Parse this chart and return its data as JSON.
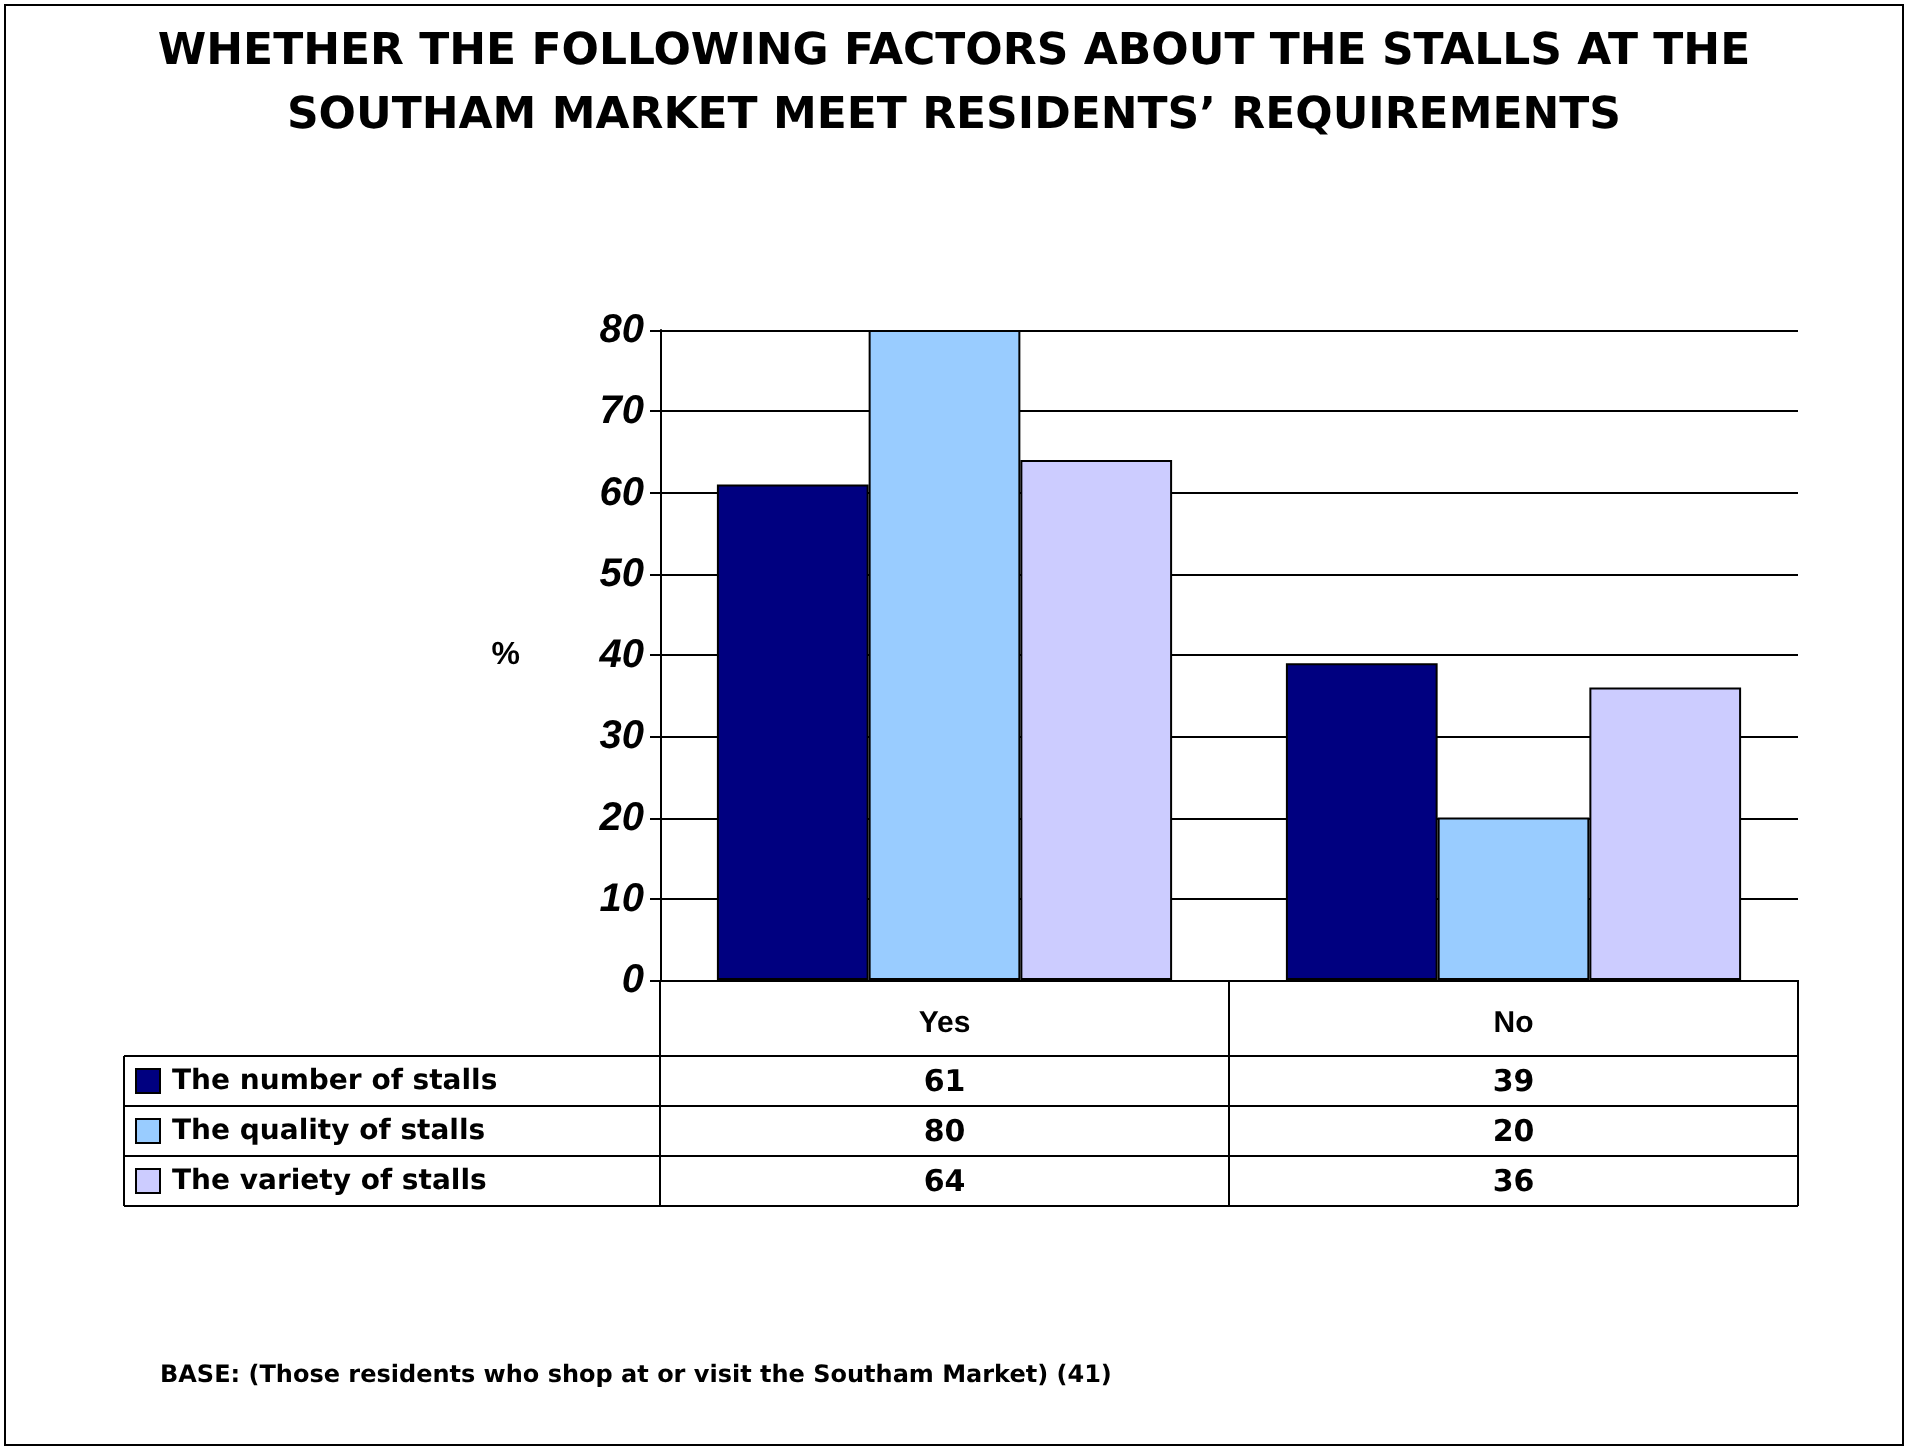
{
  "chart_data": {
    "type": "bar",
    "title": "WHETHER THE FOLLOWING FACTORS ABOUT THE STALLS AT THE SOUTHAM MARKET MEET RESIDENTS’ REQUIREMENTS",
    "ylabel": "%",
    "categories": [
      "Yes",
      "No"
    ],
    "series": [
      {
        "name": "The number of stalls",
        "color": "#000080",
        "values": [
          61,
          39
        ]
      },
      {
        "name": "The quality of stalls",
        "color": "#99ccff",
        "values": [
          80,
          20
        ]
      },
      {
        "name": "The variety of stalls",
        "color": "#ccccff",
        "values": [
          64,
          36
        ]
      }
    ],
    "ylim": [
      0,
      80
    ],
    "yticks": [
      0,
      10,
      20,
      30,
      40,
      50,
      60,
      70,
      80
    ],
    "grid": "y",
    "legend": "bottom left",
    "data_labels": true,
    "annotations": [
      "BASE: (Those residents who shop at or visit the Southam Market) (41)"
    ]
  }
}
